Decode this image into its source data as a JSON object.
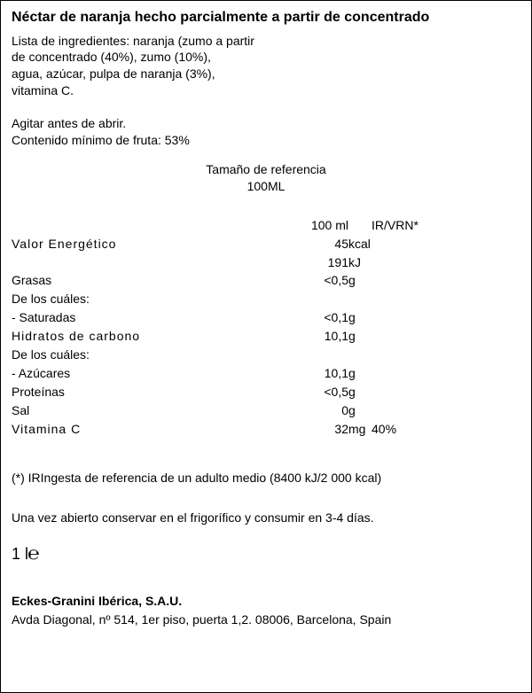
{
  "title": "Néctar de naranja hecho parcialmente a partir de concentrado",
  "ingredients": {
    "label": "Lista de ingredientes:",
    "line1": "naranja (zumo a partir",
    "line2": "de concentrado (40%), zumo (10%),",
    "line3": "agua, azúcar, pulpa de naranja (3%),",
    "line4": "vitamina C."
  },
  "instructions": {
    "shake": "Agitar antes de abrir.",
    "min_fruit": "Contenido mínimo de fruta: 53%"
  },
  "reference": {
    "label": "Tamaño de referencia",
    "size": "100ML"
  },
  "table_header": {
    "per": "100 ml",
    "irvrn": "IR/VRN*"
  },
  "rows": {
    "energy_label": "Valor  Energético",
    "energy_kcal_val": "45",
    "energy_kcal_unit": "kcal",
    "energy_kj_val": "191",
    "energy_kj_unit": "kJ",
    "fat_label": "Grasas",
    "fat_val": "<0,5",
    "fat_unit": "g",
    "ofwhich1": "De los cuáles:",
    "sat_label": "-  Saturadas",
    "sat_val": "<0,1",
    "sat_unit": "g",
    "carb_label": "Hidratos  de  carbono",
    "carb_val": "10,1",
    "carb_unit": "g",
    "ofwhich2": "De los cuáles:",
    "sugar_label": "-  Azúcares",
    "sugar_val": "10,1",
    "sugar_unit": "g",
    "prot_label": "Proteínas",
    "prot_val": "<0,5",
    "prot_unit": "g",
    "salt_label": "Sal",
    "salt_val": "0",
    "salt_unit": "g",
    "vitc_label": "Vitamina  C",
    "vitc_val": "32",
    "vitc_unit": "mg",
    "vitc_ir": "40%"
  },
  "footnote": "(*) IRIngesta de referencia de un adulto medio (8400 kJ/2 000 kcal)",
  "storage": "Una vez abierto conservar en el frigorífico y consumir en 3-4 días.",
  "volume": {
    "amount": "1 l",
    "e": "℮"
  },
  "company": "Eckes-Granini Ibérica, S.A.U.",
  "address": "Avda Diagonal, nº 514, 1er piso, puerta 1,2. 08006, Barcelona, Spain"
}
